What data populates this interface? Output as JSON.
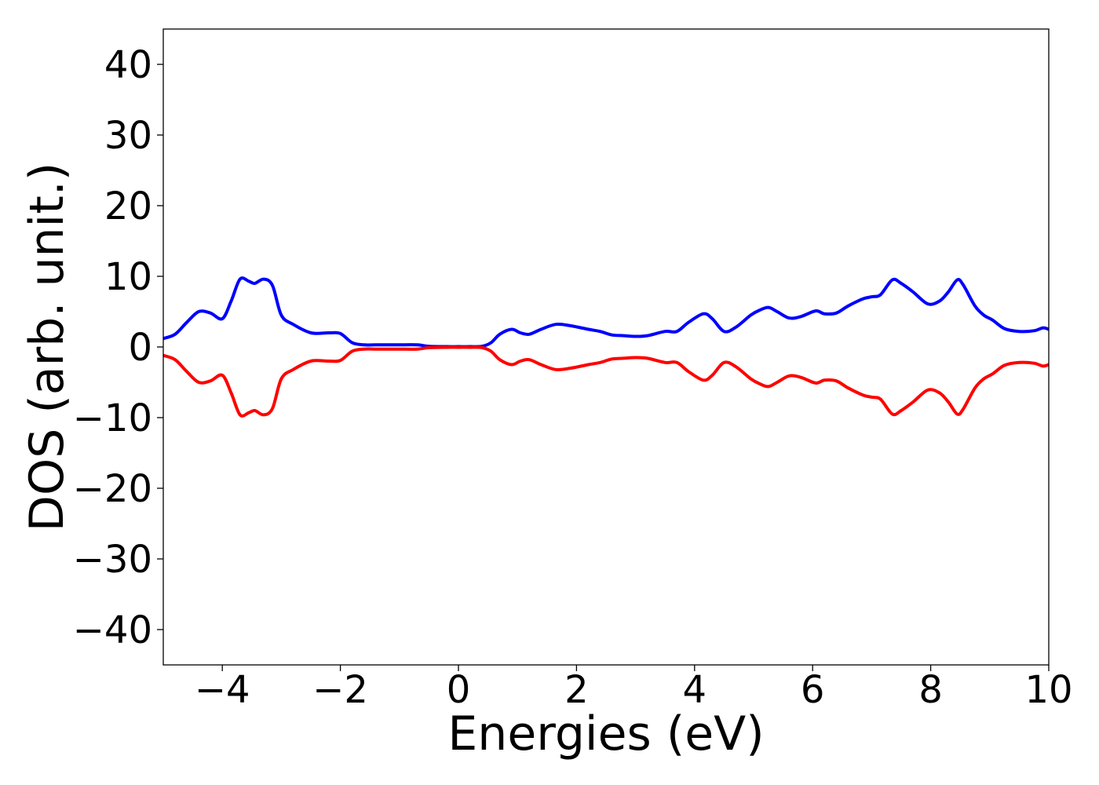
{
  "chart_data": {
    "type": "line",
    "title": "",
    "xlabel": "Energies (eV)",
    "ylabel": "DOS (arb. unit.)",
    "xlim": [
      -5,
      10
    ],
    "ylim": [
      -45,
      45
    ],
    "xticks": [
      -4,
      -2,
      0,
      2,
      4,
      6,
      8,
      10
    ],
    "xtick_labels": [
      "−4",
      "−2",
      "0",
      "2",
      "4",
      "6",
      "8",
      "10"
    ],
    "yticks": [
      40,
      30,
      20,
      10,
      0,
      -10,
      -20,
      -30,
      -40
    ],
    "ytick_labels": [
      "40",
      "30",
      "20",
      "10",
      "0",
      "−10",
      "−20",
      "−30",
      "−40"
    ],
    "grid": false,
    "legend": "none",
    "series": [
      {
        "color": "#0000ff",
        "x": [
          -5.0,
          -4.8,
          -4.6,
          -4.4,
          -4.2,
          -4.0,
          -3.85,
          -3.7,
          -3.55,
          -3.45,
          -3.3,
          -3.15,
          -3.0,
          -2.8,
          -2.5,
          -2.2,
          -2.0,
          -1.8,
          -1.6,
          -1.4,
          -1.2,
          -1.0,
          -0.7,
          -0.5,
          -0.2,
          0.0,
          0.2,
          0.4,
          0.55,
          0.7,
          0.9,
          1.05,
          1.2,
          1.4,
          1.65,
          1.9,
          2.2,
          2.4,
          2.6,
          2.8,
          3.0,
          3.2,
          3.5,
          3.7,
          3.9,
          4.15,
          4.3,
          4.5,
          4.7,
          4.95,
          5.1,
          5.25,
          5.4,
          5.6,
          5.8,
          6.05,
          6.2,
          6.4,
          6.6,
          6.85,
          7.0,
          7.15,
          7.35,
          7.5,
          7.7,
          7.95,
          8.15,
          8.3,
          8.45,
          8.55,
          8.75,
          8.9,
          9.05,
          9.25,
          9.5,
          9.75,
          9.9,
          10.0
        ],
        "y": [
          1.2,
          1.8,
          3.5,
          5.0,
          4.8,
          4.0,
          6.5,
          9.6,
          9.3,
          9.0,
          9.6,
          8.7,
          4.5,
          3.2,
          2.0,
          2.0,
          1.9,
          0.6,
          0.3,
          0.3,
          0.3,
          0.3,
          0.3,
          0.1,
          0.05,
          0.05,
          0.05,
          0.1,
          0.6,
          1.8,
          2.5,
          2.0,
          1.8,
          2.5,
          3.2,
          3.0,
          2.5,
          2.2,
          1.7,
          1.6,
          1.5,
          1.6,
          2.2,
          2.2,
          3.5,
          4.7,
          4.0,
          2.2,
          2.8,
          4.5,
          5.2,
          5.6,
          5.0,
          4.1,
          4.3,
          5.1,
          4.7,
          4.8,
          5.8,
          6.8,
          7.1,
          7.4,
          9.5,
          9.0,
          7.8,
          6.1,
          6.5,
          7.8,
          9.5,
          8.8,
          5.8,
          4.5,
          3.8,
          2.6,
          2.2,
          2.3,
          2.7,
          2.5
        ]
      },
      {
        "color": "#ff0000",
        "x": [
          -5.0,
          -4.8,
          -4.6,
          -4.4,
          -4.2,
          -4.0,
          -3.85,
          -3.7,
          -3.55,
          -3.45,
          -3.3,
          -3.15,
          -3.0,
          -2.8,
          -2.5,
          -2.2,
          -2.0,
          -1.8,
          -1.6,
          -1.4,
          -1.2,
          -1.0,
          -0.7,
          -0.5,
          -0.2,
          0.0,
          0.2,
          0.4,
          0.55,
          0.7,
          0.9,
          1.05,
          1.2,
          1.4,
          1.65,
          1.9,
          2.2,
          2.4,
          2.6,
          2.8,
          3.0,
          3.2,
          3.5,
          3.7,
          3.9,
          4.15,
          4.3,
          4.5,
          4.7,
          4.95,
          5.1,
          5.25,
          5.4,
          5.6,
          5.8,
          6.05,
          6.2,
          6.4,
          6.6,
          6.85,
          7.0,
          7.15,
          7.35,
          7.5,
          7.7,
          7.95,
          8.15,
          8.3,
          8.45,
          8.55,
          8.75,
          8.9,
          9.05,
          9.25,
          9.5,
          9.75,
          9.9,
          10.0
        ],
        "y": [
          -1.2,
          -1.8,
          -3.5,
          -5.0,
          -4.8,
          -4.0,
          -6.5,
          -9.6,
          -9.3,
          -9.0,
          -9.6,
          -8.7,
          -4.5,
          -3.2,
          -2.0,
          -2.0,
          -1.9,
          -0.6,
          -0.3,
          -0.3,
          -0.3,
          -0.3,
          -0.3,
          -0.1,
          -0.05,
          -0.05,
          -0.05,
          -0.1,
          -0.6,
          -1.8,
          -2.5,
          -2.0,
          -1.8,
          -2.5,
          -3.2,
          -3.0,
          -2.5,
          -2.2,
          -1.7,
          -1.6,
          -1.5,
          -1.6,
          -2.2,
          -2.2,
          -3.5,
          -4.7,
          -4.0,
          -2.2,
          -2.8,
          -4.5,
          -5.2,
          -5.6,
          -5.0,
          -4.1,
          -4.3,
          -5.1,
          -4.7,
          -4.8,
          -5.8,
          -6.8,
          -7.1,
          -7.4,
          -9.5,
          -9.0,
          -7.8,
          -6.1,
          -6.5,
          -7.8,
          -9.5,
          -8.8,
          -5.8,
          -4.5,
          -3.8,
          -2.6,
          -2.2,
          -2.3,
          -2.7,
          -2.5
        ]
      }
    ]
  }
}
